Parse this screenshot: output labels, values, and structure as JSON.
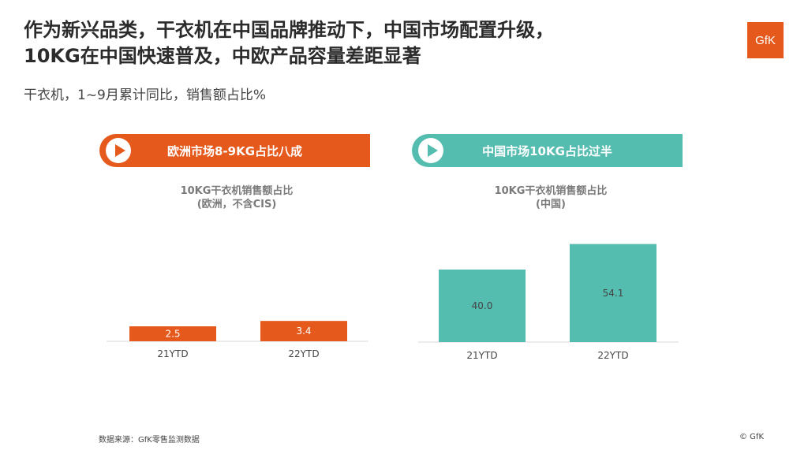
{
  "title_line1": "作为新兴品类，干衣机在中国品牌推动下，中国市场配置升级，",
  "title_line2": "10KG在中国快速普及，中欧产品容量差距显著",
  "subtitle": "干衣机，1~9月累计同比，销售额占比%",
  "logo_text": "GfK",
  "banner_eu": "欧洲市场8-9KG占比八成",
  "banner_cn": "中国市场10KG占比过半",
  "footer_source": "数据来源：GfK零售监测数据",
  "copyright": "© GfK",
  "colors": {
    "orange": "#e55a1c",
    "teal": "#55bcb0"
  },
  "chart_data": [
    {
      "type": "bar",
      "title_line1": "10KG干衣机销售额占比",
      "title_line2": "(欧洲，不含CIS)",
      "categories": [
        "21YTD",
        "22YTD"
      ],
      "values": [
        2.5,
        3.4
      ],
      "color": "#e55a1c"
    },
    {
      "type": "bar",
      "title_line1": "10KG干衣机销售额占比",
      "title_line2": "(中国)",
      "categories": [
        "21YTD",
        "22YTD"
      ],
      "values": [
        40.0,
        54.1
      ],
      "color": "#55bcb0"
    }
  ]
}
